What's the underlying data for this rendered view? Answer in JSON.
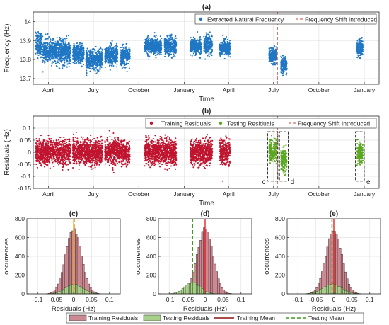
{
  "figure": {
    "panels": {
      "a": {
        "label": "(a)",
        "ylabel": "Frequency (Hz)",
        "xlabel": "Time"
      },
      "b": {
        "label": "(b)",
        "ylabel": "Residuals (Hz)",
        "xlabel": "Time"
      },
      "c": {
        "label": "(c)",
        "ylabel": "occurrences",
        "xlabel": "Residuals (Hz)"
      },
      "d": {
        "label": "(d)",
        "ylabel": "occurrences",
        "xlabel": "Residuals (Hz)"
      },
      "e": {
        "label": "(e)",
        "ylabel": "occurrences",
        "xlabel": "Residuals (Hz)"
      }
    },
    "box_labels": [
      "c",
      "d",
      "e"
    ],
    "bottom_legend": {
      "training_residuals": "Training Residuals",
      "testing_residuals": "Testing Residuals",
      "training_mean": "Training Mean",
      "testing_mean": "Testing Mean"
    },
    "colors": {
      "frequency": "#1f77c4",
      "train_resid": "#c0142f",
      "test_resid": "#5aa820",
      "shift_line": "#c94a3a",
      "hist_train_fill": "#c98a93",
      "hist_test_fill": "#a8cf8c",
      "train_mean": "#8b1414",
      "test_mean": "#3f9b1e",
      "red_mean_line": "#e01515",
      "orange_mean_line": "#e9a020"
    }
  },
  "chart_data": [
    {
      "type": "scatter",
      "id": "a",
      "title": "(a)",
      "xlabel": "Time",
      "ylabel": "Frequency (Hz)",
      "xlim": [
        "2017-03-01",
        "2019-01-31"
      ],
      "ylim": [
        13.67,
        14.05
      ],
      "xticks": [
        "April",
        "July",
        "October",
        "January",
        "April",
        "July",
        "October",
        "January"
      ],
      "yticks": [
        13.7,
        13.8,
        13.9,
        14
      ],
      "grid": true,
      "legend_position": "top-right",
      "series": [
        {
          "name": "Extracted Natural Frequency",
          "kind": "points",
          "segments": [
            {
              "start": "2017-03-06",
              "end": "2017-03-18",
              "mean": 13.88,
              "spread": 0.06
            },
            {
              "start": "2017-03-20",
              "end": "2017-05-16",
              "mean": 13.84,
              "spread": 0.06
            },
            {
              "start": "2017-05-20",
              "end": "2017-06-12",
              "mean": 13.83,
              "spread": 0.05
            },
            {
              "start": "2017-06-16",
              "end": "2017-07-19",
              "mean": 13.8,
              "spread": 0.05
            },
            {
              "start": "2017-07-24",
              "end": "2017-08-19",
              "mean": 13.82,
              "spread": 0.05
            },
            {
              "start": "2017-08-25",
              "end": "2017-09-13",
              "mean": 13.82,
              "spread": 0.05
            },
            {
              "start": "2017-10-13",
              "end": "2017-11-16",
              "mean": 13.87,
              "spread": 0.04
            },
            {
              "start": "2017-11-22",
              "end": "2017-12-16",
              "mean": 13.87,
              "spread": 0.05
            },
            {
              "start": "2018-01-13",
              "end": "2018-02-05",
              "mean": 13.87,
              "spread": 0.04
            },
            {
              "start": "2018-02-10",
              "end": "2018-02-27",
              "mean": 13.88,
              "spread": 0.05
            },
            {
              "start": "2018-03-14",
              "end": "2018-04-04",
              "mean": 13.86,
              "spread": 0.04
            },
            {
              "start": "2018-06-22",
              "end": "2018-07-07",
              "mean": 13.82,
              "spread": 0.04
            },
            {
              "start": "2018-07-16",
              "end": "2018-07-28",
              "mean": 13.77,
              "spread": 0.04
            },
            {
              "start": "2018-12-17",
              "end": "2018-12-29",
              "mean": 13.86,
              "spread": 0.04
            }
          ]
        },
        {
          "name": "Frequency Shift Introduced",
          "kind": "vline",
          "x": "2018-07-09"
        }
      ]
    },
    {
      "type": "scatter",
      "id": "b",
      "title": "(b)",
      "xlabel": "Time",
      "ylabel": "Residuals (Hz)",
      "xlim": [
        "2017-03-01",
        "2019-01-31"
      ],
      "ylim": [
        -0.15,
        0.15
      ],
      "xticks": [
        "April",
        "July",
        "October",
        "January",
        "April",
        "July",
        "October",
        "January"
      ],
      "yticks": [
        -0.15,
        -0.1,
        -0.05,
        0,
        0.05,
        0.1
      ],
      "grid": true,
      "legend_position": "top-right",
      "series": [
        {
          "name": "Training Residuals",
          "kind": "points",
          "segments": [
            {
              "start": "2017-03-06",
              "end": "2017-05-16",
              "mean": 0,
              "spread": 0.05
            },
            {
              "start": "2017-05-20",
              "end": "2017-07-19",
              "mean": 0,
              "spread": 0.05
            },
            {
              "start": "2017-07-24",
              "end": "2017-09-13",
              "mean": 0,
              "spread": 0.05
            },
            {
              "start": "2017-10-13",
              "end": "2017-12-16",
              "mean": 0,
              "spread": 0.05
            },
            {
              "start": "2018-01-13",
              "end": "2018-02-27",
              "mean": 0,
              "spread": 0.05
            },
            {
              "start": "2018-03-14",
              "end": "2018-04-04",
              "mean": 0,
              "spread": 0.05
            }
          ]
        },
        {
          "name": "Testing Residuals",
          "kind": "points",
          "segments": [
            {
              "start": "2018-06-22",
              "end": "2018-07-07",
              "mean": 0.005,
              "spread": 0.045
            },
            {
              "start": "2018-07-16",
              "end": "2018-07-28",
              "mean": -0.035,
              "spread": 0.045
            },
            {
              "start": "2018-12-17",
              "end": "2018-12-29",
              "mean": -0.005,
              "spread": 0.045
            }
          ]
        },
        {
          "name": "Frequency Shift Introduced",
          "kind": "vline",
          "x": "2018-07-09"
        }
      ]
    },
    {
      "type": "bar",
      "id": "c",
      "title": "(c)",
      "xlabel": "Residuals (Hz)",
      "ylabel": "occurrences",
      "xlim": [
        -0.13,
        0.13
      ],
      "ylim": [
        0,
        800
      ],
      "xticks": [
        -0.1,
        -0.05,
        0,
        0.05,
        0.1
      ],
      "yticks": [
        0,
        200,
        400,
        600,
        800
      ],
      "grid": true,
      "bin_width": 0.005,
      "series": [
        {
          "name": "Training Residuals",
          "kind": "histogram",
          "mean": 0,
          "peak": 690,
          "sigma": 0.022
        },
        {
          "name": "Testing Residuals",
          "kind": "histogram",
          "mean": 0.002,
          "peak": 100,
          "sigma": 0.024
        },
        {
          "name": "Training Mean",
          "kind": "vline",
          "x": 0
        },
        {
          "name": "Testing Mean",
          "kind": "vline",
          "x": 0.002
        }
      ]
    },
    {
      "type": "bar",
      "id": "d",
      "title": "(d)",
      "xlabel": "Residuals (Hz)",
      "ylabel": "occurrences",
      "xlim": [
        -0.13,
        0.13
      ],
      "ylim": [
        0,
        800
      ],
      "xticks": [
        -0.1,
        -0.05,
        0,
        0.05,
        0.1
      ],
      "yticks": [
        0,
        200,
        400,
        600,
        800
      ],
      "grid": true,
      "bin_width": 0.005,
      "series": [
        {
          "name": "Training Residuals",
          "kind": "histogram",
          "mean": 0,
          "peak": 690,
          "sigma": 0.022
        },
        {
          "name": "Testing Residuals",
          "kind": "histogram",
          "mean": -0.035,
          "peak": 120,
          "sigma": 0.022
        },
        {
          "name": "Training Mean",
          "kind": "vline",
          "x": 0
        },
        {
          "name": "Testing Mean",
          "kind": "vline",
          "x": -0.035
        }
      ]
    },
    {
      "type": "bar",
      "id": "e",
      "title": "(e)",
      "xlabel": "Residuals (Hz)",
      "ylabel": "occurrences",
      "xlim": [
        -0.13,
        0.13
      ],
      "ylim": [
        0,
        800
      ],
      "xticks": [
        -0.1,
        -0.05,
        0,
        0.05,
        0.1
      ],
      "yticks": [
        0,
        200,
        400,
        600,
        800
      ],
      "grid": true,
      "bin_width": 0.005,
      "series": [
        {
          "name": "Training Residuals",
          "kind": "histogram",
          "mean": 0,
          "peak": 690,
          "sigma": 0.022
        },
        {
          "name": "Testing Residuals",
          "kind": "histogram",
          "mean": -0.005,
          "peak": 105,
          "sigma": 0.026
        },
        {
          "name": "Training Mean",
          "kind": "vline",
          "x": 0
        },
        {
          "name": "Testing Mean",
          "kind": "vline",
          "x": -0.005
        }
      ]
    }
  ]
}
